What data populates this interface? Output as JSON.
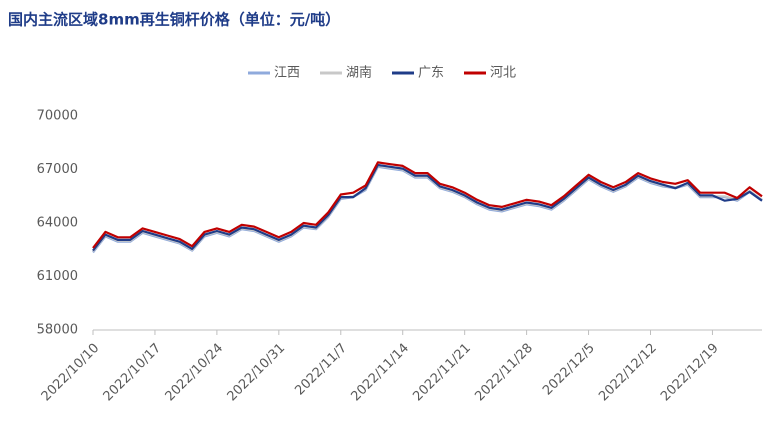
{
  "chart_data": {
    "type": "line",
    "title": "国内主流区域8mm再生铜杆价格（单位：元/吨）",
    "categories": [
      "2022/10/10",
      null,
      null,
      null,
      null,
      "2022/10/17",
      null,
      null,
      null,
      null,
      "2022/10/24",
      null,
      null,
      null,
      null,
      "2022/10/31",
      null,
      null,
      null,
      null,
      "2022/11/7",
      null,
      null,
      null,
      null,
      "2022/11/14",
      null,
      null,
      null,
      null,
      "2022/11/21",
      null,
      null,
      null,
      null,
      "2022/11/28",
      null,
      null,
      null,
      null,
      "2022/12/5",
      null,
      null,
      null,
      null,
      "2022/12/12",
      null,
      null,
      null,
      null,
      "2022/12/19",
      null,
      null,
      null,
      null
    ],
    "series": [
      {
        "name": "江西",
        "color": "#8faadc",
        "values": [
          62350,
          63250,
          62950,
          62950,
          63450,
          63250,
          63050,
          62850,
          62450,
          63250,
          63450,
          63250,
          63650,
          63550,
          63250,
          62950,
          63250,
          63750,
          63650,
          64350,
          65350,
          65450,
          65850,
          67150,
          67050,
          66950,
          66550,
          66550,
          65950,
          65750,
          65450,
          65050,
          64750,
          64650,
          64850,
          65050,
          64950,
          64750,
          65250,
          65850,
          66450,
          66050,
          65750,
          66050,
          66550,
          66250,
          66050,
          65950,
          66150,
          65450,
          65450,
          65450,
          65250,
          65750,
          65250
        ]
      },
      {
        "name": "湖南",
        "color": "#c8c8c8",
        "values": [
          62400,
          63300,
          63000,
          63000,
          63500,
          63300,
          63100,
          62900,
          62500,
          63300,
          63500,
          63300,
          63700,
          63600,
          63300,
          63000,
          63300,
          63800,
          63700,
          64400,
          65400,
          65500,
          65900,
          67200,
          67100,
          67000,
          66600,
          66600,
          66000,
          65800,
          65500,
          65100,
          64800,
          64700,
          64900,
          65100,
          65000,
          64800,
          65300,
          65900,
          66500,
          66100,
          65800,
          66100,
          66600,
          66300,
          66100,
          66000,
          66200,
          65500,
          65500,
          65500,
          65300,
          65800,
          65300
        ]
      },
      {
        "name": "广东",
        "color": "#1f3c88",
        "values": [
          62450,
          63350,
          63050,
          63050,
          63550,
          63350,
          63150,
          62950,
          62550,
          63350,
          63550,
          63350,
          63750,
          63650,
          63350,
          63050,
          63350,
          63850,
          63750,
          64450,
          65450,
          65450,
          65950,
          67250,
          67150,
          67050,
          66650,
          66650,
          66050,
          65850,
          65550,
          65150,
          64850,
          64750,
          64950,
          65150,
          65050,
          64850,
          65350,
          65950,
          66550,
          66150,
          65850,
          66150,
          66650,
          66350,
          66150,
          65950,
          66250,
          65550,
          65550,
          65250,
          65350,
          65750,
          65250
        ]
      },
      {
        "name": "河北",
        "color": "#c00000",
        "values": [
          62600,
          63500,
          63200,
          63200,
          63700,
          63500,
          63300,
          63100,
          62700,
          63500,
          63700,
          63500,
          63900,
          63800,
          63500,
          63200,
          63500,
          64000,
          63900,
          64600,
          65600,
          65700,
          66100,
          67400,
          67300,
          67200,
          66800,
          66800,
          66200,
          66000,
          65700,
          65300,
          65000,
          64900,
          65100,
          65300,
          65200,
          65000,
          65500,
          66100,
          66700,
          66300,
          66000,
          66300,
          66800,
          66500,
          66300,
          66200,
          66400,
          65700,
          65700,
          65700,
          65400,
          66000,
          65500
        ]
      }
    ],
    "ylim": [
      58000,
      70000
    ],
    "yticks": [
      58000,
      61000,
      64000,
      67000,
      70000
    ],
    "grid": false
  }
}
